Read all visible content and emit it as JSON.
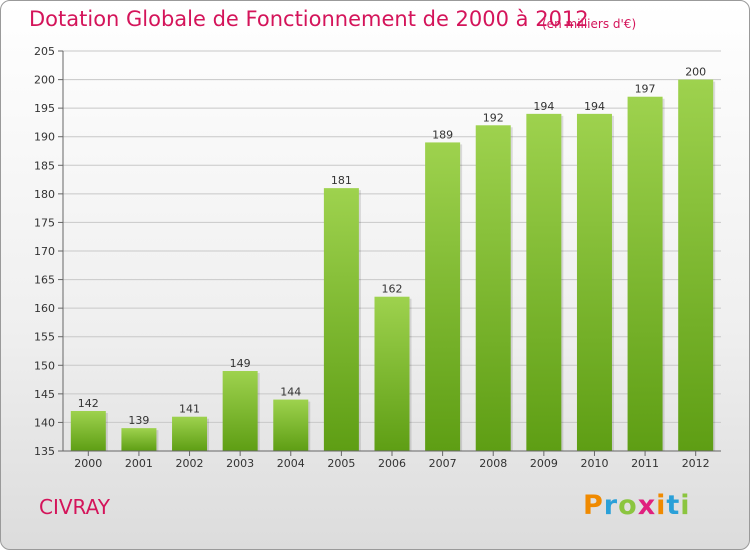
{
  "header": {
    "title": "Dotation Globale de Fonctionnement de 2000 à 2012",
    "subtitle": "(en milliers d'€)"
  },
  "footer": {
    "city": "CIVRAY",
    "logo_text": "Proxiti",
    "logo_letters": [
      "P",
      "r",
      "o",
      "x",
      "i",
      "t",
      "i"
    ],
    "logo_colors": [
      "#f08a00",
      "#2aa0d8",
      "#8bc53f",
      "#e0207e",
      "#f08a00",
      "#2aa0d8",
      "#8bc53f"
    ]
  },
  "colors": {
    "title": "#d4145a",
    "bar_top": "#9ed24e",
    "bar_bottom": "#5e9e14",
    "grid": "#c8c8c8",
    "axis_text": "#333333"
  },
  "chart_data": {
    "type": "bar",
    "title": "Dotation Globale de Fonctionnement de 2000 à 2012",
    "subtitle": "(en milliers d'€)",
    "categories": [
      "2000",
      "2001",
      "2002",
      "2003",
      "2004",
      "2005",
      "2006",
      "2007",
      "2008",
      "2009",
      "2010",
      "2011",
      "2012"
    ],
    "values": [
      142,
      139,
      141,
      149,
      144,
      181,
      162,
      189,
      192,
      194,
      194,
      197,
      200
    ],
    "ylim": [
      135,
      205
    ],
    "yticks": [
      135,
      140,
      145,
      150,
      155,
      160,
      165,
      170,
      175,
      180,
      185,
      190,
      195,
      200,
      205
    ],
    "grid": true,
    "legend": "none"
  }
}
